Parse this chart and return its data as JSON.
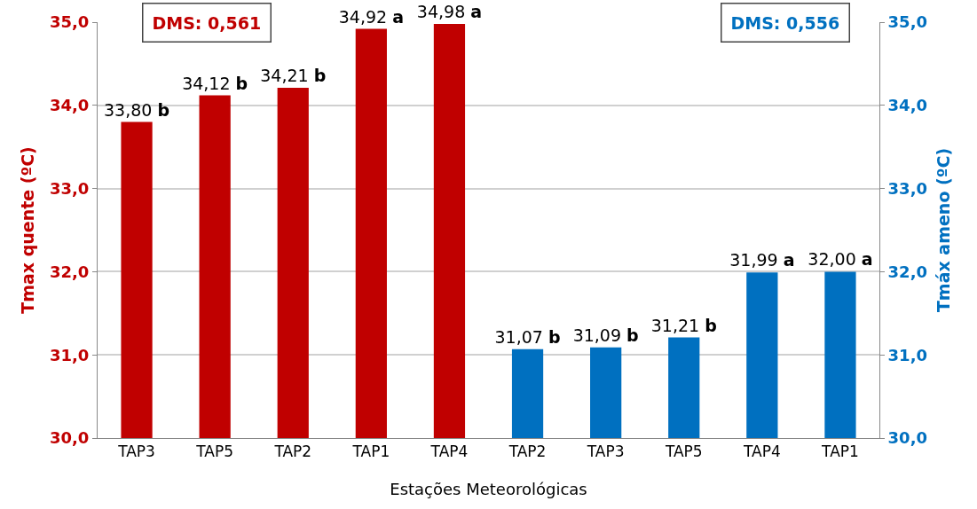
{
  "chart_data": {
    "type": "bar",
    "xlabel": "Estações Meteorológicas",
    "ylabel": "Tmax quente (ºC)",
    "y2label": "Tmáx ameno (ºC)",
    "categories": [
      "TAP3",
      "TAP5",
      "TAP2",
      "TAP1",
      "TAP4",
      "TAP2",
      "TAP3",
      "TAP5",
      "TAP4",
      "TAP1"
    ],
    "series": [
      {
        "color": "#c00000",
        "values": [
          33.8,
          34.12,
          34.21,
          34.92,
          34.98,
          null,
          null,
          null,
          null,
          null
        ],
        "value_labels": [
          "33,80 b",
          "34,12 b",
          "34,21 b",
          "34,92 a",
          "34,98 a",
          null,
          null,
          null,
          null,
          null
        ]
      },
      {
        "color": "#0070c0",
        "axis": "y2",
        "values": [
          null,
          null,
          null,
          null,
          null,
          31.07,
          31.09,
          31.21,
          31.99,
          32.0
        ],
        "value_labels": [
          null,
          null,
          null,
          null,
          null,
          "31,07 b",
          "31,09 b",
          "31,21 b",
          "31,99 a",
          "32,00 a"
        ]
      }
    ],
    "ylim": [
      30,
      35
    ],
    "yticks": [
      {
        "value": 30,
        "label": "30,0"
      },
      {
        "value": 31,
        "label": "31,0"
      },
      {
        "value": 32,
        "label": "32,0"
      },
      {
        "value": 33,
        "label": "33,0"
      },
      {
        "value": 34,
        "label": "34,0"
      },
      {
        "value": 35,
        "label": "35,0"
      }
    ],
    "y2lim": [
      30,
      35
    ],
    "y2ticks": [
      {
        "value": 30,
        "label": "30,0"
      },
      {
        "value": 31,
        "label": "31,0"
      },
      {
        "value": 32,
        "label": "32,0"
      },
      {
        "value": 33,
        "label": "33,0"
      },
      {
        "value": 34,
        "label": "34,0"
      },
      {
        "value": 35,
        "label": "35,0"
      }
    ],
    "grid": "y",
    "annotations": [
      "DMS: 0,561",
      "DMS: 0,556"
    ]
  }
}
